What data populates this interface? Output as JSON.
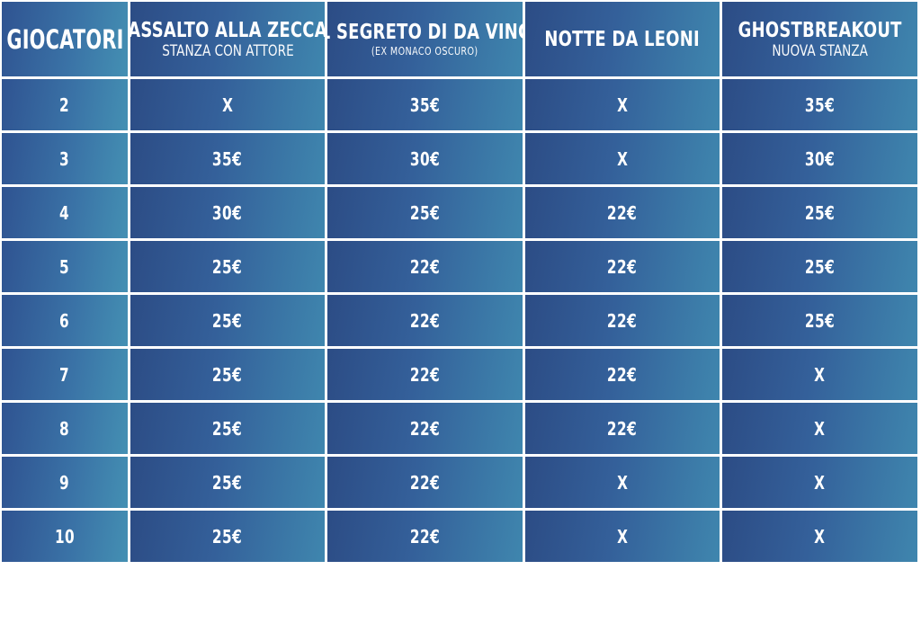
{
  "headers": [
    {
      "title": "GIOCATORI",
      "subtitle": ""
    },
    {
      "title": "ASSALTO ALLA ZECCA",
      "subtitle": "STANZA CON ATTORE"
    },
    {
      "title": "IL SEGRETO DI DA VINCI",
      "subtitle": "(EX MONACO OSCURO)"
    },
    {
      "title": "NOTTE DA LEONI",
      "subtitle": ""
    },
    {
      "title": "GHOSTBREAKOUT",
      "subtitle": "NUOVA STANZA"
    }
  ],
  "rows": [
    {
      "players": "2",
      "prices": [
        "X",
        "35€",
        "X",
        "35€"
      ]
    },
    {
      "players": "3",
      "prices": [
        "35€",
        "30€",
        "X",
        "30€"
      ]
    },
    {
      "players": "4",
      "prices": [
        "30€",
        "25€",
        "22€",
        "25€"
      ]
    },
    {
      "players": "5",
      "prices": [
        "25€",
        "22€",
        "22€",
        "25€"
      ]
    },
    {
      "players": "6",
      "prices": [
        "25€",
        "22€",
        "22€",
        "25€"
      ]
    },
    {
      "players": "7",
      "prices": [
        "25€",
        "22€",
        "22€",
        "X"
      ]
    },
    {
      "players": "8",
      "prices": [
        "25€",
        "22€",
        "22€",
        "X"
      ]
    },
    {
      "players": "9",
      "prices": [
        "25€",
        "22€",
        "X",
        "X"
      ]
    },
    {
      "players": "10",
      "prices": [
        "25€",
        "22€",
        "X",
        "X"
      ]
    }
  ],
  "colors": {
    "cell_dark": "#2c4c85",
    "cell_light": "#3f86ae",
    "text": "#ffffff",
    "border": "#ffffff"
  }
}
